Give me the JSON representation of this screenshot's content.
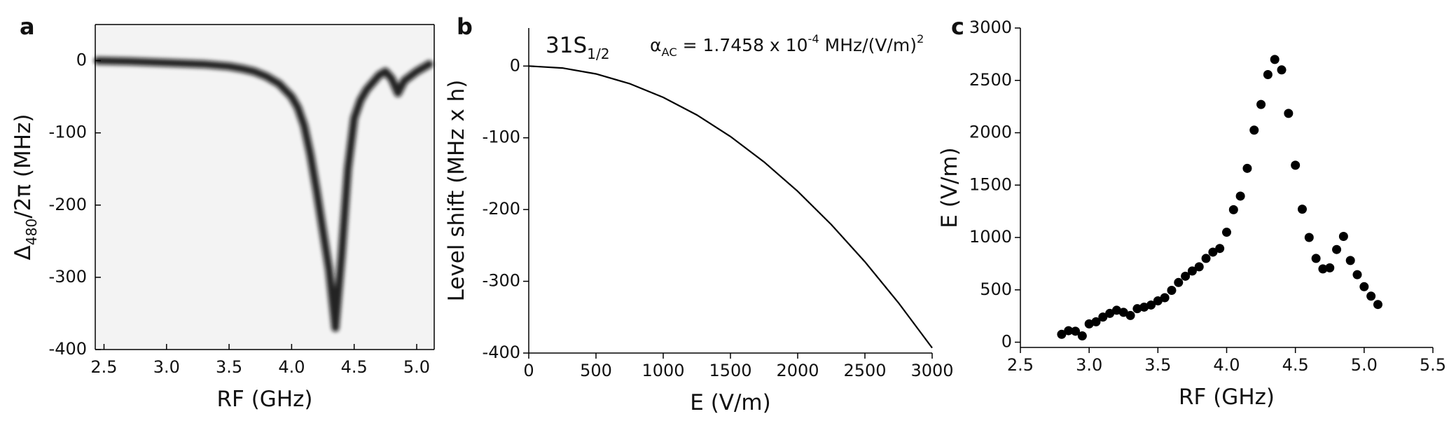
{
  "chart_data": [
    {
      "type": "heatmap",
      "panel": "a",
      "x_label": [
        {
          "text": "RF (GHz)"
        }
      ],
      "y_label": [
        {
          "text": "Δ"
        },
        {
          "sub": "480"
        },
        {
          "text": "/2π (MHz)"
        }
      ],
      "x": [
        2.45,
        2.7,
        3.0,
        3.3,
        3.5,
        3.6,
        3.7,
        3.8,
        3.9,
        4.0,
        4.05,
        4.1,
        4.15,
        4.2,
        4.25,
        4.3,
        4.35,
        4.4,
        4.45,
        4.5,
        4.55,
        4.6,
        4.7,
        4.75,
        4.8,
        4.85,
        4.9,
        5.0,
        5.1
      ],
      "values": [
        0,
        -1,
        -3,
        -5,
        -8,
        -11,
        -15,
        -22,
        -32,
        -50,
        -65,
        -90,
        -130,
        -180,
        -235,
        -290,
        -370,
        -270,
        -150,
        -80,
        -55,
        -40,
        -20,
        -15,
        -25,
        -45,
        -28,
        -15,
        -5
      ],
      "color": "#111111",
      "xlim": [
        2.43,
        5.14
      ],
      "ylim": [
        -400,
        50
      ],
      "xticks": [
        2.5,
        {
          "value": 3,
          "label": "3.0"
        },
        3.5,
        {
          "value": 4,
          "label": "4.0"
        },
        4.5,
        {
          "value": 5,
          "label": "5.0"
        }
      ],
      "yticks": [
        0,
        -100,
        -200,
        -300,
        -400
      ]
    },
    {
      "type": "line",
      "panel": "b",
      "x_label": [
        {
          "text": "E (V/m)"
        }
      ],
      "y_label": [
        {
          "text": "Level shift (MHz x h)"
        }
      ],
      "annotations": [
        [
          {
            "text": "31S"
          },
          {
            "sub": "1/2"
          }
        ],
        [
          {
            "text": "α"
          },
          {
            "sub": "AC"
          },
          {
            "text": " = 1.7458 x 10"
          },
          {
            "sup": "-4"
          },
          {
            "text": " MHz/(V/m)"
          },
          {
            "sup": "2"
          }
        ]
      ],
      "x": [
        0,
        250,
        500,
        750,
        1000,
        1250,
        1500,
        1750,
        2000,
        2250,
        2500,
        2750,
        3000
      ],
      "values": [
        0,
        -2.73,
        -10.91,
        -24.55,
        -43.65,
        -68.2,
        -98.2,
        -133.66,
        -174.58,
        -220.95,
        -272.78,
        -330.06,
        -392.81
      ],
      "color": "#000000",
      "xlim": [
        0,
        3000
      ],
      "ylim": [
        -400,
        53
      ],
      "xticks": [
        0,
        500,
        1000,
        1500,
        2000,
        2500,
        3000
      ],
      "yticks": [
        0,
        -100,
        -200,
        -300,
        -400
      ]
    },
    {
      "type": "scatter",
      "panel": "c",
      "x_label": [
        {
          "text": "RF (GHz)"
        }
      ],
      "y_label": [
        {
          "text": "E (V/m)"
        }
      ],
      "x": [
        2.8,
        2.85,
        2.9,
        2.95,
        3.0,
        3.05,
        3.1,
        3.15,
        3.2,
        3.25,
        3.3,
        3.35,
        3.4,
        3.45,
        3.5,
        3.55,
        3.6,
        3.65,
        3.7,
        3.75,
        3.8,
        3.85,
        3.9,
        3.95,
        4.0,
        4.05,
        4.1,
        4.15,
        4.2,
        4.25,
        4.3,
        4.35,
        4.4,
        4.45,
        4.5,
        4.55,
        4.6,
        4.65,
        4.7,
        4.75,
        4.8,
        4.85,
        4.9,
        4.95,
        5.0,
        5.05,
        5.1
      ],
      "values": [
        75,
        110,
        105,
        60,
        175,
        195,
        240,
        275,
        305,
        285,
        255,
        320,
        335,
        355,
        395,
        425,
        495,
        570,
        630,
        680,
        720,
        800,
        860,
        895,
        1050,
        1265,
        1395,
        1660,
        2025,
        2270,
        2555,
        2700,
        2600,
        2185,
        1690,
        1270,
        1000,
        800,
        700,
        710,
        885,
        1010,
        780,
        645,
        530,
        440,
        360
      ],
      "color": "#000000",
      "xlim": [
        2.5,
        5.5
      ],
      "ylim": [
        -50,
        3000
      ],
      "xticks": [
        2.5,
        {
          "value": 3,
          "label": "3.0"
        },
        3.5,
        {
          "value": 4,
          "label": "4.0"
        },
        4.5,
        {
          "value": 5,
          "label": "5.0"
        },
        5.5
      ],
      "yticks": [
        0,
        500,
        1000,
        1500,
        2000,
        2500,
        3000
      ]
    }
  ]
}
